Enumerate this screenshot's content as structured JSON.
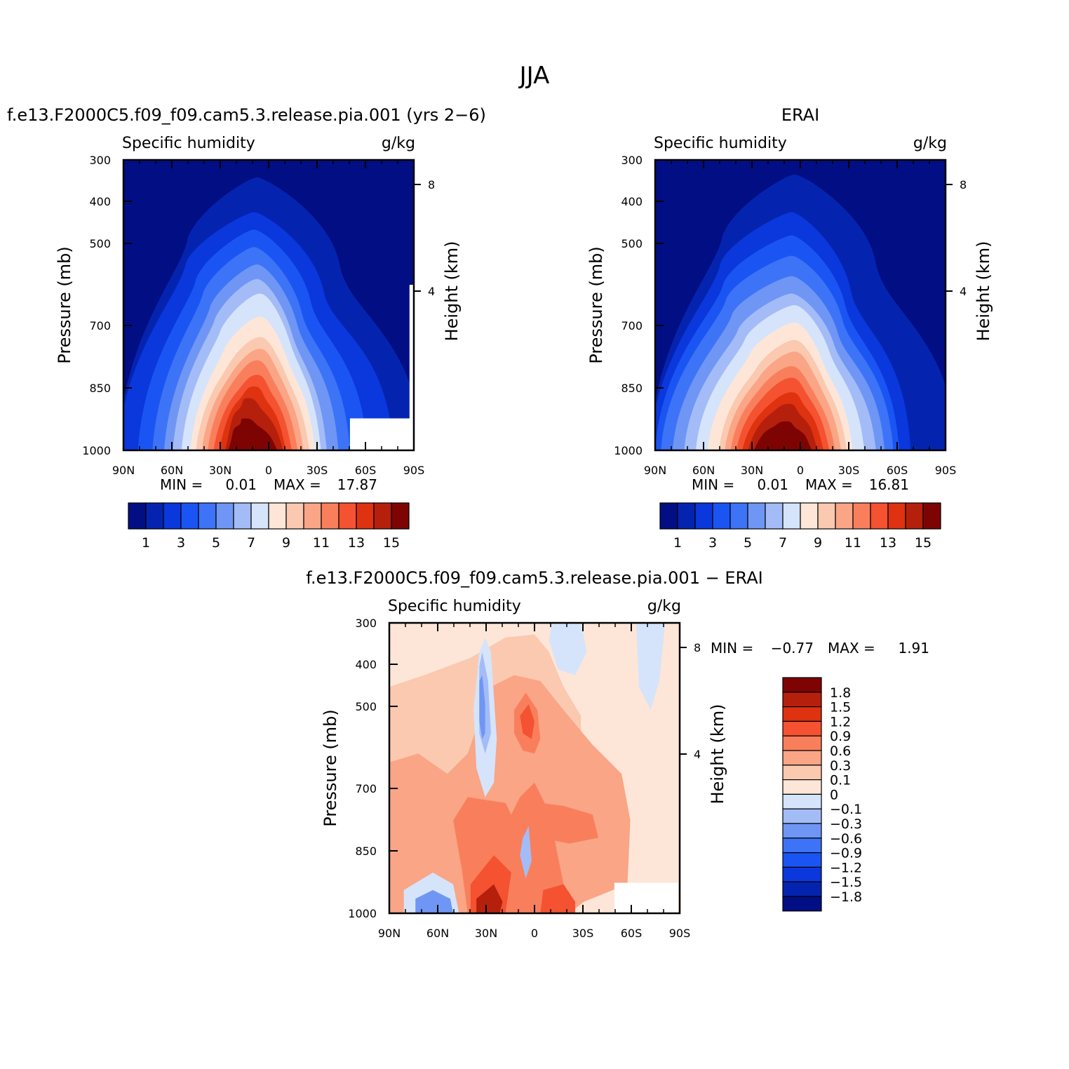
{
  "page": {
    "title": "JJA"
  },
  "panels": {
    "model": {
      "title": "f.e13.F2000C5.f09_f09.cam5.3.release.pia.001 (yrs 2−6)"
    },
    "obs": {
      "title": "ERAI"
    },
    "diff": {
      "title": "f.e13.F2000C5.f09_f09.cam5.3.release.pia.001 − ERAI"
    }
  },
  "chart_data": [
    {
      "id": "model",
      "type": "heatmap",
      "title": "f.e13.F2000C5.f09_f09.cam5.3.release.pia.001 (yrs 2−6)",
      "subtitle_left": "Specific humidity",
      "subtitle_right": "g/kg",
      "ylabel": "Pressure (mb)",
      "ylabel_right": "Height (km)",
      "x_ticks": [
        "90N",
        "60N",
        "30N",
        "0",
        "30S",
        "60S",
        "90S"
      ],
      "x_values": [
        90,
        60,
        30,
        0,
        -30,
        -60,
        -90
      ],
      "y_ticks": [
        300,
        400,
        500,
        700,
        850,
        1000
      ],
      "y_right_ticks": [
        8,
        4
      ],
      "y_log": true,
      "min_label": "MIN =",
      "min": "0.01",
      "max_label": "MAX =",
      "max": "17.87",
      "colorbar_levels": [
        "1",
        "3",
        "5",
        "7",
        "9",
        "11",
        "13",
        "15"
      ]
    },
    {
      "id": "obs",
      "type": "heatmap",
      "title": "ERAI",
      "subtitle_left": "Specific humidity",
      "subtitle_right": "g/kg",
      "ylabel": "Pressure (mb)",
      "ylabel_right": "Height (km)",
      "x_ticks": [
        "90N",
        "60N",
        "30N",
        "0",
        "30S",
        "60S",
        "90S"
      ],
      "x_values": [
        90,
        60,
        30,
        0,
        -30,
        -60,
        -90
      ],
      "y_ticks": [
        300,
        400,
        500,
        700,
        850,
        1000
      ],
      "y_right_ticks": [
        8,
        4
      ],
      "y_log": true,
      "min_label": "MIN =",
      "min": "0.01",
      "max_label": "MAX =",
      "max": "16.81",
      "colorbar_levels": [
        "1",
        "3",
        "5",
        "7",
        "9",
        "11",
        "13",
        "15"
      ]
    },
    {
      "id": "diff",
      "type": "heatmap",
      "title": "f.e13.F2000C5.f09_f09.cam5.3.release.pia.001 − ERAI",
      "subtitle_left": "Specific humidity",
      "subtitle_right": "g/kg",
      "ylabel": "Pressure (mb)",
      "ylabel_right": "Height (km)",
      "x_ticks": [
        "90N",
        "60N",
        "30N",
        "0",
        "30S",
        "60S",
        "90S"
      ],
      "x_values": [
        90,
        60,
        30,
        0,
        -30,
        -60,
        -90
      ],
      "y_ticks": [
        300,
        400,
        500,
        700,
        850,
        1000
      ],
      "y_right_ticks": [
        8,
        4
      ],
      "y_log": true,
      "min_label": "MIN =",
      "min": "−0.77",
      "max_label": "MAX =",
      "max": "1.91",
      "colorbar_levels": [
        "1.8",
        "1.5",
        "1.2",
        "0.9",
        "0.6",
        "0.3",
        "0.1",
        "0",
        "−0.1",
        "−0.3",
        "−0.6",
        "−0.9",
        "−1.2",
        "−1.5",
        "−1.8"
      ]
    }
  ],
  "colors": {
    "scale_16": [
      "#020e84",
      "#0424b0",
      "#0a38dc",
      "#1a55f4",
      "#3d73f6",
      "#6f96f4",
      "#a3bcf7",
      "#d5e4fa",
      "#fde6d8",
      "#fbc9b0",
      "#f9a586",
      "#f97f5c",
      "#f45230",
      "#de3210",
      "#b5200c",
      "#7e0404"
    ]
  }
}
